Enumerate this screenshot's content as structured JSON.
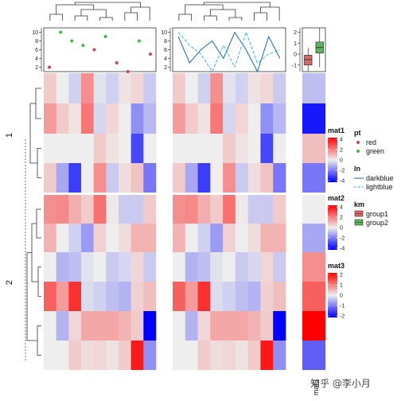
{
  "chart_data": {
    "type": "heatmap",
    "row_slice_labels": [
      "1",
      "2"
    ],
    "mat1": [
      [
        0.6,
        0.0,
        -0.5,
        1.6,
        -0.2,
        -0.5,
        0.2,
        0.4,
        -0.6
      ],
      [
        1.4,
        0.6,
        0.2,
        2.0,
        -0.4,
        0.4,
        0.0,
        -1.6,
        -0.9
      ],
      [
        0.0,
        0.0,
        0.0,
        0.0,
        0.6,
        0.2,
        0.0,
        -2.8,
        0.0
      ],
      [
        0.6,
        -1.2,
        -3.0,
        0.0,
        1.6,
        -0.6,
        0.3,
        0.7,
        -2.0
      ],
      [
        1.6,
        1.7,
        1.1,
        0.6,
        2.1,
        0.1,
        -0.6,
        -0.6,
        0.6
      ],
      [
        1.0,
        0.0,
        -0.5,
        -1.4,
        0.5,
        0.0,
        0.3,
        1.0,
        1.0
      ],
      [
        0.0,
        -1.0,
        -0.8,
        -0.2,
        0.0,
        -0.6,
        -0.4,
        0.4,
        -0.6
      ],
      [
        2.4,
        1.4,
        3.2,
        -0.3,
        -0.5,
        -0.8,
        -1.0,
        0.5,
        0.8
      ],
      [
        0.0,
        -1.0,
        0.4,
        1.2,
        1.2,
        1.2,
        1.0,
        0.6,
        -4.0
      ],
      [
        0.0,
        0.0,
        0.6,
        0.3,
        0.4,
        0.2,
        0.6,
        3.6,
        -1.6
      ]
    ],
    "mat2": [
      [
        0.6,
        0.0,
        -0.5,
        1.6,
        -0.2,
        -0.5,
        0.2,
        0.4,
        -0.6
      ],
      [
        1.4,
        0.6,
        0.2,
        2.0,
        -0.4,
        0.4,
        0.0,
        -1.6,
        -0.9
      ],
      [
        0.0,
        0.0,
        0.0,
        0.0,
        0.6,
        0.2,
        0.0,
        -2.8,
        0.0
      ],
      [
        0.6,
        -1.2,
        -3.0,
        0.0,
        1.6,
        -0.6,
        0.3,
        0.7,
        -2.0
      ],
      [
        1.6,
        1.7,
        1.1,
        0.6,
        2.1,
        0.1,
        -0.6,
        -0.6,
        0.6
      ],
      [
        1.0,
        0.0,
        -0.5,
        -1.4,
        0.5,
        0.0,
        0.3,
        1.0,
        1.0
      ],
      [
        0.0,
        -1.0,
        -0.8,
        -0.2,
        0.0,
        -0.6,
        -0.4,
        0.4,
        -0.6
      ],
      [
        2.4,
        1.4,
        3.2,
        -0.3,
        -0.5,
        -0.8,
        -1.0,
        0.5,
        0.8
      ],
      [
        0.0,
        -1.0,
        0.4,
        1.2,
        1.2,
        1.2,
        1.0,
        0.6,
        -4.0
      ],
      [
        0.0,
        0.0,
        0.6,
        0.3,
        0.4,
        0.2,
        0.6,
        3.6,
        -1.6
      ]
    ],
    "mat3": [
      -0.4,
      -1.8,
      0.4,
      -1.0,
      0.0,
      -0.6,
      0.8,
      1.2,
      2.0,
      -1.2
    ],
    "point_annotation": {
      "ylim": [
        1,
        11
      ],
      "yticks": [
        2,
        4,
        6,
        8,
        10
      ],
      "points": [
        {
          "x": 1,
          "y": 2,
          "group": "red"
        },
        {
          "x": 2,
          "y": 10,
          "group": "green"
        },
        {
          "x": 3,
          "y": 8,
          "group": "green"
        },
        {
          "x": 4,
          "y": 7,
          "group": "green"
        },
        {
          "x": 5,
          "y": 6,
          "group": "red"
        },
        {
          "x": 6,
          "y": 9,
          "group": "green"
        },
        {
          "x": 7,
          "y": 3,
          "group": "red"
        },
        {
          "x": 8,
          "y": 1,
          "group": "red"
        },
        {
          "x": 9,
          "y": 8,
          "group": "green"
        },
        {
          "x": 10,
          "y": 5,
          "group": "red"
        }
      ]
    },
    "line_annotation": {
      "ylim": [
        1,
        11
      ],
      "yticks": [
        2,
        4,
        6,
        8,
        10
      ],
      "darkblue": [
        9,
        3,
        6,
        8,
        4,
        10,
        6,
        1,
        9,
        4
      ],
      "lightblue": [
        10,
        7,
        5,
        1,
        7,
        2,
        10,
        3,
        5,
        6
      ]
    },
    "box_annotation": {
      "ylim": [
        -1.6,
        2.4
      ],
      "yticks": [
        -1,
        0,
        1,
        2
      ],
      "boxes": [
        {
          "group": "group1",
          "min": -1.6,
          "q1": -1.0,
          "median": -0.5,
          "q3": -0.1,
          "max": 0.6
        },
        {
          "group": "group2",
          "min": -1.2,
          "q1": 0.1,
          "median": 0.6,
          "q3": 1.1,
          "max": 2.4
        }
      ]
    },
    "legends": [
      {
        "title": "mat1",
        "type": "continuous",
        "ticks": [
          "4",
          "2",
          "0",
          "-2",
          "-4"
        ]
      },
      {
        "title": "mat2",
        "type": "continuous",
        "ticks": [
          "4",
          "2",
          "0",
          "-2",
          "-4"
        ]
      },
      {
        "title": "mat3",
        "type": "continuous",
        "ticks": [
          "2",
          "1",
          "0",
          "-1",
          "-2"
        ]
      },
      {
        "title": "pt",
        "type": "points",
        "items": [
          "red",
          "green"
        ]
      },
      {
        "title": "ln",
        "type": "lines",
        "items": [
          "darkblue",
          "lightblue"
        ]
      },
      {
        "title": "km",
        "type": "boxes",
        "items": [
          "group1",
          "group2"
        ]
      }
    ],
    "column_label": "mat3"
  },
  "colors": {
    "low": "#0000ff",
    "mid": "#eeeeee",
    "high": "#ff0000",
    "pt_red": "#d43f5a",
    "pt_green": "#35c235",
    "ln_darkblue": "#1565c0",
    "ln_lightblue": "#3ab5e6",
    "box_group1": "#e06666",
    "box_group2": "#5bb55b"
  },
  "watermark": "知乎 @李小月"
}
